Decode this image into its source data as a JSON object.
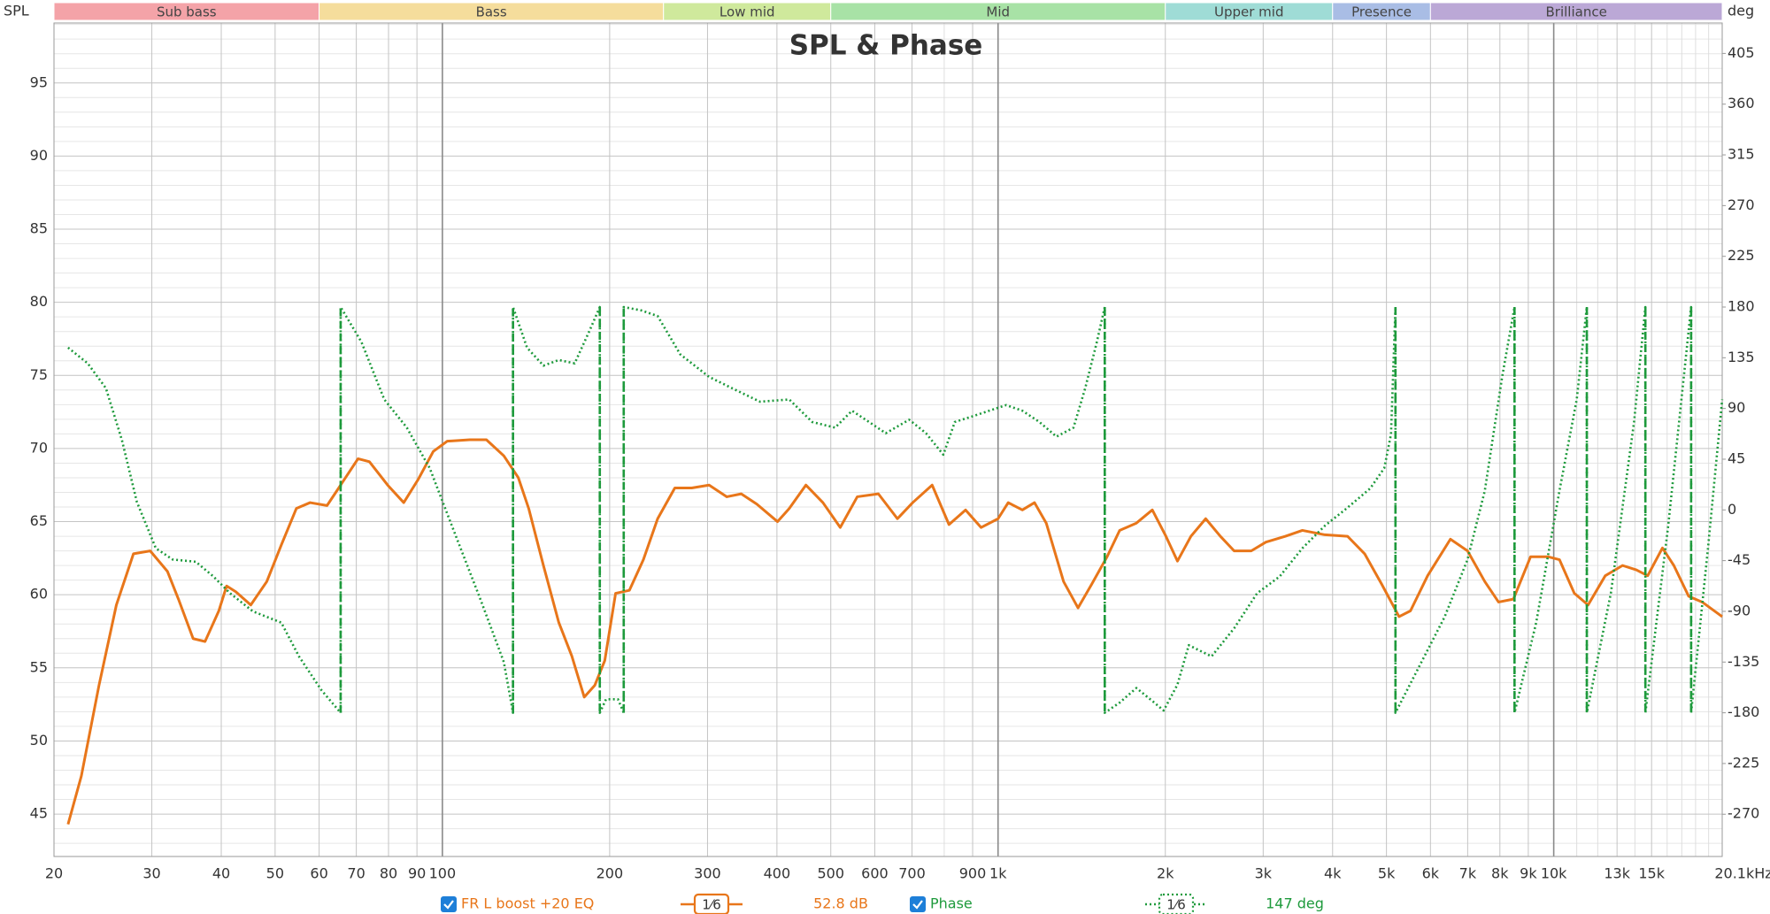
{
  "chart_data": {
    "type": "line",
    "title": "SPL & Phase",
    "ylabel": "SPL",
    "y2label": "deg",
    "xscale": "log",
    "grid": true,
    "xlim": [
      20,
      20100
    ],
    "ylim": [
      42.1,
      99.1
    ],
    "y2lim": [
      -307.5,
      432
    ],
    "xticks": [
      20,
      30,
      40,
      50,
      60,
      70,
      80,
      90,
      100,
      200,
      300,
      400,
      500,
      600,
      700,
      900,
      {
        "value": 1000,
        "label": "1k"
      },
      {
        "value": 2000,
        "label": "2k"
      },
      {
        "value": 3000,
        "label": "3k"
      },
      {
        "value": 4000,
        "label": "4k"
      },
      {
        "value": 5000,
        "label": "5k"
      },
      {
        "value": 6000,
        "label": "6k"
      },
      {
        "value": 7000,
        "label": "7k"
      },
      {
        "value": 8000,
        "label": "8k"
      },
      {
        "value": 9000,
        "label": "9k"
      },
      {
        "value": 10000,
        "label": "10k"
      },
      {
        "value": 13000,
        "label": "13k"
      },
      {
        "value": 15000,
        "label": "15k"
      },
      {
        "value": 20100,
        "label": "20.1kHz"
      }
    ],
    "xminorticks": [
      800,
      11000,
      12000,
      14000,
      16000,
      17000,
      18000,
      19000
    ],
    "yticks": [
      45,
      50,
      55,
      60,
      65,
      70,
      75,
      80,
      85,
      90,
      95
    ],
    "yminorticks": [
      43,
      44,
      46,
      47,
      48,
      49,
      51,
      52,
      53,
      54,
      56,
      57,
      58,
      59,
      61,
      62,
      63,
      64,
      66,
      67,
      68,
      69,
      71,
      72,
      73,
      74,
      76,
      77,
      78,
      79,
      81,
      82,
      83,
      84,
      86,
      87,
      88,
      89,
      91,
      92,
      93,
      94,
      96,
      97,
      98,
      99
    ],
    "y2ticks": [
      -270,
      -225,
      -180,
      -135,
      -90,
      -45,
      0,
      45,
      90,
      135,
      180,
      225,
      270,
      315,
      360,
      405
    ],
    "bands": [
      {
        "name": "Sub bass",
        "start": 20,
        "end": 60,
        "color": "#f4a3a8"
      },
      {
        "name": "Bass",
        "start": 60,
        "end": 250,
        "color": "#f5dd9c"
      },
      {
        "name": "Low mid",
        "start": 250,
        "end": 500,
        "color": "#cfe99c"
      },
      {
        "name": "Mid",
        "start": 500,
        "end": 2000,
        "color": "#a8e2a6"
      },
      {
        "name": "Upper mid",
        "start": 2000,
        "end": 4000,
        "color": "#9fdcd6"
      },
      {
        "name": "Presence",
        "start": 4000,
        "end": 6000,
        "color": "#a9bde5"
      },
      {
        "name": "Brilliance",
        "start": 6000,
        "end": 20100,
        "color": "#bba8d6"
      }
    ],
    "series": [
      {
        "name": "FR L boost +20 EQ",
        "color": "#e8761a",
        "axis": "y",
        "line_style": "solid",
        "smoothing": "1⁄6",
        "readout": "52.8 dB",
        "x": [
          21.2,
          22.4,
          24.1,
          25.9,
          27.8,
          29.8,
          32,
          33.5,
          35.6,
          37.4,
          39.6,
          40.9,
          42.5,
          45.2,
          48.3,
          51.3,
          54.6,
          57.8,
          62,
          65.6,
          70.5,
          73.9,
          79.7,
          85.2,
          90.5,
          96.3,
          102,
          112,
          120,
          129,
          137,
          143,
          152,
          162,
          171,
          180,
          188,
          196,
          205,
          217,
          230,
          244,
          262,
          281,
          302,
          325,
          345,
          368,
          401,
          421,
          451,
          484,
          520,
          558,
          609,
          659,
          702,
          761,
          816,
          874,
          932,
          1000,
          1043,
          1106,
          1163,
          1221,
          1312,
          1393,
          1473,
          1571,
          1655,
          1774,
          1895,
          2005,
          2103,
          2224,
          2364,
          2512,
          2660,
          2855,
          3034,
          3290,
          3529,
          3875,
          4255,
          4568,
          4906,
          5268,
          5523,
          5930,
          6517,
          6997,
          7516,
          7956,
          8460,
          9085,
          9764,
          10240,
          10890,
          11530,
          12380,
          13300,
          14080,
          14760,
          15690,
          16450,
          17490,
          18500,
          20100
        ],
        "values": [
          44.3,
          47.6,
          53.8,
          59.3,
          62.8,
          63,
          61.6,
          59.7,
          57,
          56.8,
          58.9,
          60.6,
          60.2,
          59.3,
          60.9,
          63.4,
          65.9,
          66.3,
          66.1,
          67.5,
          69.3,
          69.1,
          67.5,
          66.3,
          67.9,
          69.8,
          70.5,
          70.6,
          70.6,
          69.5,
          68,
          65.9,
          62,
          58.1,
          55.8,
          53,
          53.8,
          55.5,
          60.1,
          60.3,
          62.4,
          65.2,
          67.3,
          67.3,
          67.5,
          66.7,
          66.9,
          66.2,
          65,
          65.9,
          67.5,
          66.3,
          64.6,
          66.7,
          66.9,
          65.2,
          66.3,
          67.5,
          64.8,
          65.8,
          64.6,
          65.2,
          66.3,
          65.8,
          66.3,
          64.9,
          60.9,
          59.1,
          60.7,
          62.6,
          64.4,
          64.9,
          65.8,
          64,
          62.3,
          64,
          65.2,
          64,
          63,
          63,
          63.6,
          64,
          64.4,
          64.1,
          64,
          62.8,
          60.7,
          58.5,
          58.9,
          61.3,
          63.8,
          63,
          60.9,
          59.5,
          59.7,
          62.6,
          62.6,
          62.4,
          60.1,
          59.3,
          61.3,
          62,
          61.7,
          61.3,
          63.2,
          62,
          59.9,
          59.5,
          58.5
        ]
      },
      {
        "name": "Phase",
        "color": "#1e9a3c",
        "axis": "y2",
        "line_style": "dotted",
        "smoothing": "1⁄6",
        "readout": "147 deg",
        "x": [
          21.2,
          23,
          24.8,
          26.5,
          28.2,
          30.5,
          32.7,
          36,
          38.7,
          41.5,
          45.6,
          51.3,
          55.2,
          60.6,
          65.6,
          65.6,
          71.5,
          78.6,
          86.3,
          94.9,
          104,
          117,
          129,
          134,
          134,
          142,
          152,
          162,
          173,
          184,
          192,
          192,
          197,
          207,
          212,
          212,
          228,
          244,
          268,
          302,
          332,
          373,
          421,
          463,
          509,
          546,
          586,
          628,
          692,
          742,
          797,
          836,
          899,
          964,
          1034,
          1106,
          1187,
          1274,
          1367,
          1435,
          1506,
          1556,
          1556,
          1655,
          1774,
          1911,
          1986,
          2103,
          2204,
          2422,
          2660,
          2925,
          3213,
          3529,
          3875,
          4255,
          4673,
          4954,
          5095,
          5190,
          5190,
          5780,
          6362,
          6997,
          7516,
          8075,
          8500,
          8500,
          9299,
          10240,
          11000,
          11470,
          11470,
          12670,
          13950,
          14620,
          14620,
          16070,
          17670,
          17670,
          18950,
          20100
        ],
        "values": [
          144,
          130,
          108,
          62,
          7,
          -34,
          -44,
          -46,
          -59,
          -74,
          -90,
          -100,
          -130,
          -160,
          -180,
          180,
          149,
          98,
          73,
          37,
          -14,
          -79,
          -135,
          -180,
          180,
          144,
          128,
          133,
          130,
          159,
          180,
          -180,
          -168,
          -168,
          -180,
          180,
          177,
          172,
          138,
          118,
          108,
          96,
          98,
          78,
          73,
          88,
          78,
          68,
          80,
          68,
          49,
          78,
          83,
          88,
          93,
          88,
          78,
          65,
          73,
          108,
          149,
          180,
          -180,
          -171,
          -158,
          -171,
          -178,
          -155,
          -120,
          -130,
          -105,
          -74,
          -59,
          -34,
          -14,
          2,
          19,
          37,
          67,
          180,
          -180,
          -135,
          -95,
          -44,
          17,
          118,
          180,
          -180,
          -100,
          17,
          98,
          180,
          -180,
          -74,
          78,
          180,
          -180,
          -14,
          180,
          -180,
          -34,
          98
        ]
      }
    ]
  }
}
